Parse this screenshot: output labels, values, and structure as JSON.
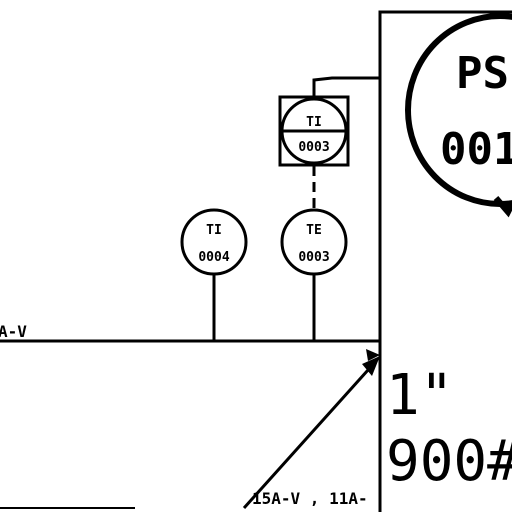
{
  "drawing": {
    "line_labels": {
      "main_line": "A-V",
      "bottom_line": "15A-V , 11A-"
    },
    "instruments": [
      {
        "id": "ti-0003",
        "tag": "TI",
        "number": "0003",
        "style": "panel"
      },
      {
        "id": "ti-0004",
        "tag": "TI",
        "number": "0004",
        "style": "field"
      },
      {
        "id": "te-0003",
        "tag": "TE",
        "number": "0003",
        "style": "field"
      }
    ],
    "balloon": {
      "tag": "PS",
      "number": "001"
    },
    "pipe_size": "1\"",
    "rating": "900#"
  }
}
